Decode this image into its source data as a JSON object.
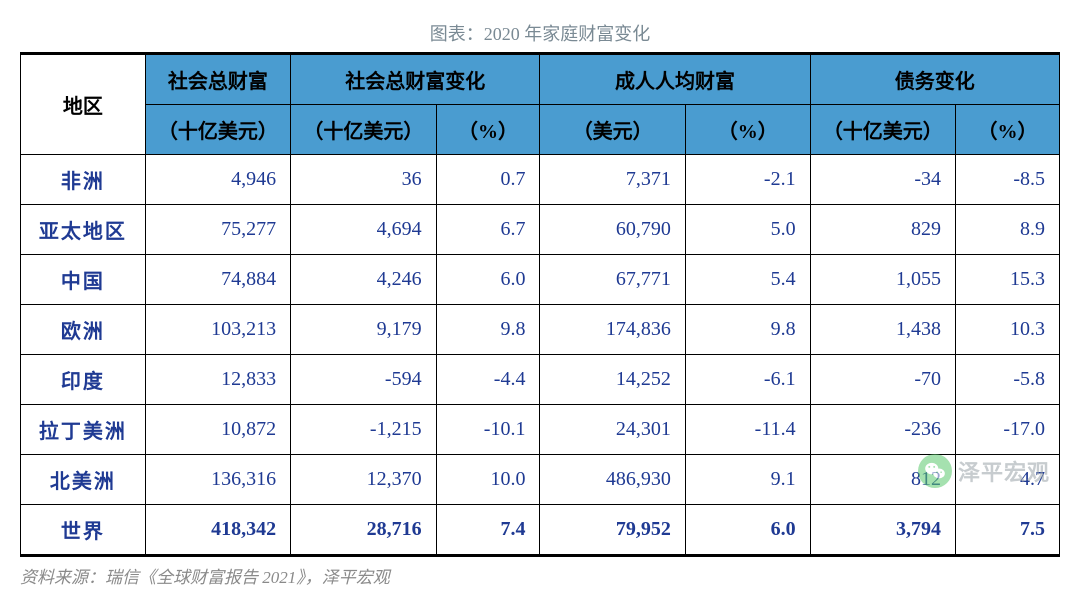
{
  "title": "图表：2020 年家庭财富变化",
  "source": "资料来源：瑞信《全球财富报告 2021》，泽平宏观",
  "watermark": "泽平宏观",
  "colors": {
    "header_bg": "#4a9cd0",
    "border": "#000000",
    "text": "#1f3a93",
    "title_color": "#7a8a94",
    "source_color": "#8a8a8a"
  },
  "header": {
    "region": "地区",
    "total_wealth": "社会总财富",
    "total_wealth_change": "社会总财富变化",
    "per_adult_wealth": "成人人均财富",
    "debt_change": "债务变化",
    "unit_bil_usd": "（十亿美元）",
    "unit_usd": "（美元）",
    "unit_pct": "（%）"
  },
  "rows": [
    {
      "region": "非洲",
      "tw": "4,946",
      "twc": "36",
      "twcp": "0.7",
      "paw": "7,371",
      "pawp": "-2.1",
      "dc": "-34",
      "dcp": "-8.5",
      "bold": false
    },
    {
      "region": "亚太地区",
      "tw": "75,277",
      "twc": "4,694",
      "twcp": "6.7",
      "paw": "60,790",
      "pawp": "5.0",
      "dc": "829",
      "dcp": "8.9",
      "bold": false
    },
    {
      "region": "中国",
      "tw": "74,884",
      "twc": "4,246",
      "twcp": "6.0",
      "paw": "67,771",
      "pawp": "5.4",
      "dc": "1,055",
      "dcp": "15.3",
      "bold": false
    },
    {
      "region": "欧洲",
      "tw": "103,213",
      "twc": "9,179",
      "twcp": "9.8",
      "paw": "174,836",
      "pawp": "9.8",
      "dc": "1,438",
      "dcp": "10.3",
      "bold": false
    },
    {
      "region": "印度",
      "tw": "12,833",
      "twc": "-594",
      "twcp": "-4.4",
      "paw": "14,252",
      "pawp": "-6.1",
      "dc": "-70",
      "dcp": "-5.8",
      "bold": false
    },
    {
      "region": "拉丁美洲",
      "tw": "10,872",
      "twc": "-1,215",
      "twcp": "-10.1",
      "paw": "24,301",
      "pawp": "-11.4",
      "dc": "-236",
      "dcp": "-17.0",
      "bold": false
    },
    {
      "region": "北美洲",
      "tw": "136,316",
      "twc": "12,370",
      "twcp": "10.0",
      "paw": "486,930",
      "pawp": "9.1",
      "dc": "812",
      "dcp": "4.7",
      "bold": false
    },
    {
      "region": "世界",
      "tw": "418,342",
      "twc": "28,716",
      "twcp": "7.4",
      "paw": "79,952",
      "pawp": "6.0",
      "dc": "3,794",
      "dcp": "7.5",
      "bold": true
    }
  ]
}
